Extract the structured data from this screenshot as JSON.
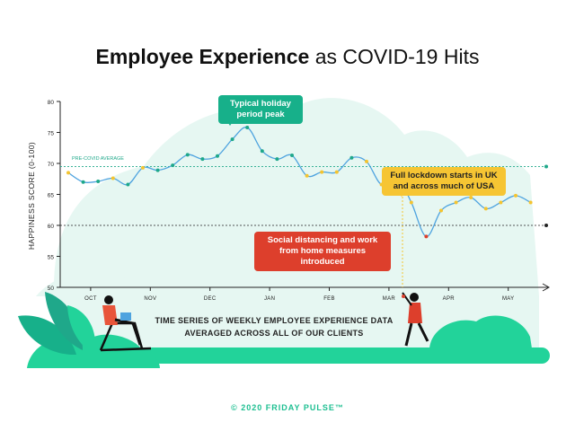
{
  "title": {
    "bold": "Employee Experience",
    "rest": "as COVID-19 Hits"
  },
  "footer": "© 2020 FRIDAY PULSE™",
  "caption": {
    "line1": "TIME SERIES OF WEEKLY EMPLOYEE EXPERIENCE DATA",
    "line2": "AVERAGED ACROSS ALL OF OUR CLIENTS"
  },
  "colors": {
    "line": "#4ea3df",
    "point_teal": "#1fa88a",
    "point_yellow": "#f4c430",
    "point_red": "#dd3f2c",
    "background_shape": "#e6f7f2",
    "accent_green": "#17b08a",
    "accent_yellow": "#f6c533",
    "accent_red": "#dd3f2c"
  },
  "chart_data": {
    "type": "line",
    "ylabel": "HAPPINESS SCORE (0-100)",
    "xlabel": "",
    "ylim": [
      50,
      80
    ],
    "yticks": [
      50,
      55,
      60,
      65,
      70,
      75,
      80
    ],
    "xlim": [
      0,
      31
    ],
    "month_labels": [
      {
        "label": "OCT",
        "x": 1.5
      },
      {
        "label": "NOV",
        "x": 5.5
      },
      {
        "label": "DEC",
        "x": 9.5
      },
      {
        "label": "JAN",
        "x": 13.5
      },
      {
        "label": "FEB",
        "x": 17.5
      },
      {
        "label": "MAR",
        "x": 21.5
      },
      {
        "label": "APR",
        "x": 25.5
      },
      {
        "label": "MAY",
        "x": 29.5
      }
    ],
    "series": [
      {
        "values": [
          68.5,
          67.0,
          67.1,
          67.6,
          66.6,
          69.3,
          68.9,
          69.7,
          71.4,
          70.7,
          71.2,
          73.9,
          75.8,
          72.0,
          70.7,
          71.3,
          68.0,
          68.6,
          68.6,
          70.9,
          70.3,
          66.6,
          68.0,
          63.7,
          58.2,
          62.4,
          63.7,
          64.5,
          62.7,
          63.7,
          64.8,
          63.7
        ],
        "point_colors": [
          "yellow",
          "teal",
          "teal",
          "yellow",
          "teal",
          "yellow",
          "teal",
          "teal",
          "teal",
          "teal",
          "teal",
          "teal",
          "teal",
          "teal",
          "teal",
          "teal",
          "yellow",
          "yellow",
          "yellow",
          "teal",
          "yellow",
          "yellow",
          "yellow",
          "yellow",
          "red",
          "yellow",
          "yellow",
          "yellow",
          "yellow",
          "yellow",
          "yellow",
          "yellow"
        ]
      }
    ],
    "reference_lines": [
      {
        "label": "PRE-COVID AVERAGE",
        "value": 69.5,
        "color": "#1fa88a"
      },
      {
        "label": "",
        "value": 60,
        "color": "#222222"
      }
    ],
    "annotations": [
      {
        "text": "Typical holiday period peak",
        "x": 12,
        "y": 75.8
      },
      {
        "text": "Full lockdown starts in UK and across much of USA",
        "x": 25,
        "y": 62.4
      },
      {
        "text": "Social distancing and work from home measures introduced",
        "x": 24,
        "y": 58.2
      }
    ]
  }
}
